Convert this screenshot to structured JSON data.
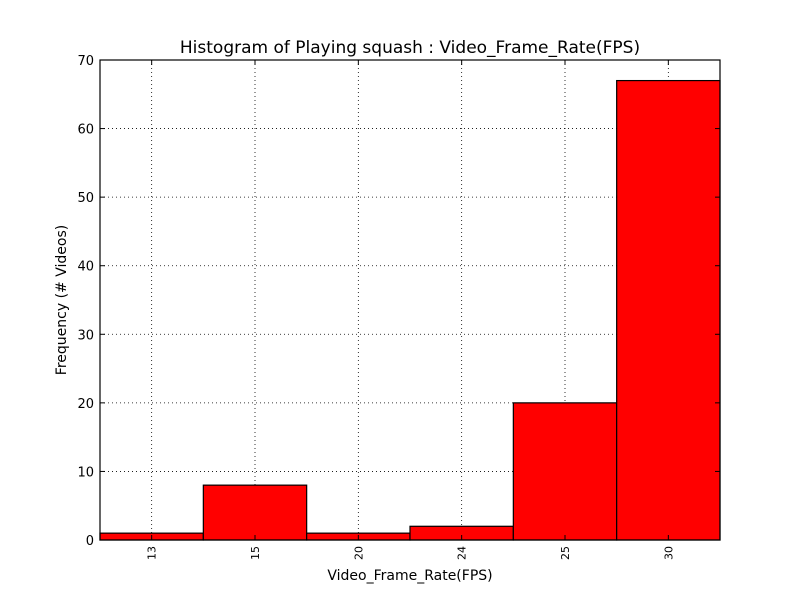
{
  "chart_data": {
    "type": "bar",
    "title": "Histogram of Playing squash : Video_Frame_Rate(FPS)",
    "xlabel": "Video_Frame_Rate(FPS)",
    "ylabel": "Frequency (# Videos)",
    "categories": [
      "13",
      "15",
      "20",
      "24",
      "25",
      "30"
    ],
    "values": [
      1,
      8,
      1,
      2,
      20,
      67
    ],
    "ylim": [
      0,
      70
    ],
    "yticks": [
      "0",
      "10",
      "20",
      "30",
      "40",
      "50",
      "60",
      "70"
    ],
    "grid": true,
    "bar_color": "#ff0000",
    "edge_color": "#000000"
  }
}
